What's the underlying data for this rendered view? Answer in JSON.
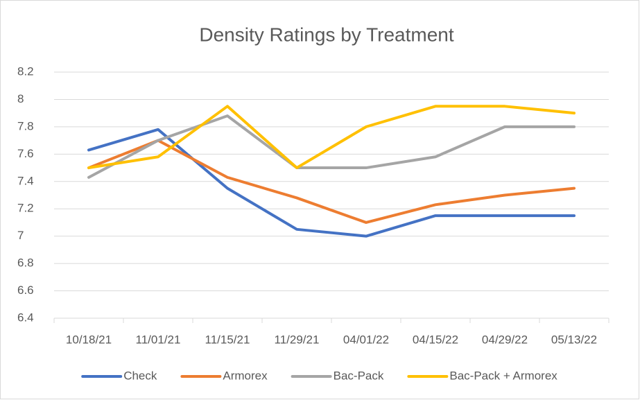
{
  "chart_data": {
    "type": "line",
    "title": "Density Ratings by Treatment",
    "categories": [
      "10/18/21",
      "11/01/21",
      "11/15/21",
      "11/29/21",
      "04/01/22",
      "04/15/22",
      "04/29/22",
      "05/13/22"
    ],
    "series": [
      {
        "name": "Check",
        "color": "#4472c4",
        "values": [
          7.63,
          7.78,
          7.35,
          7.05,
          7.0,
          7.15,
          7.15,
          7.15
        ]
      },
      {
        "name": "Armorex",
        "color": "#ed7d31",
        "values": [
          7.5,
          7.7,
          7.43,
          7.28,
          7.1,
          7.23,
          7.3,
          7.35
        ]
      },
      {
        "name": "Bac-Pack",
        "color": "#a5a5a5",
        "values": [
          7.43,
          7.7,
          7.88,
          7.5,
          7.5,
          7.58,
          7.8,
          7.8
        ]
      },
      {
        "name": "Bac-Pack + Armorex",
        "color": "#ffc000",
        "values": [
          7.5,
          7.58,
          7.95,
          7.5,
          7.8,
          7.95,
          7.95,
          7.9
        ]
      }
    ],
    "ylim": [
      6.4,
      8.2
    ],
    "yticks": [
      6.4,
      6.6,
      6.8,
      7,
      7.2,
      7.4,
      7.6,
      7.8,
      8,
      8.2
    ],
    "grid": true,
    "legend": "bottom"
  }
}
